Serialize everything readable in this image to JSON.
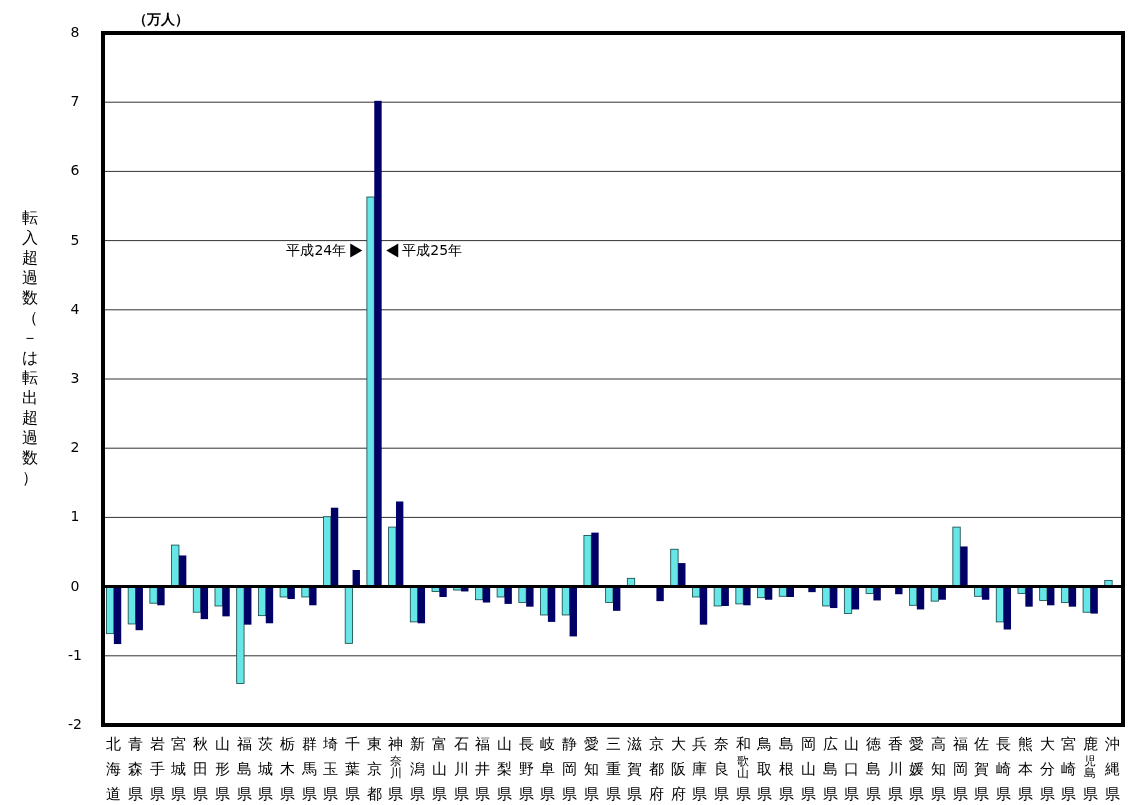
{
  "chart_data": {
    "type": "bar",
    "ylabel": "転入超過数（－は転出超過数）",
    "annotations": [
      "（万人）"
    ],
    "categories": [
      "北海道",
      "青森県",
      "岩手県",
      "宮城県",
      "秋田県",
      "山形県",
      "福島県",
      "茨城県",
      "栃木県",
      "群馬県",
      "埼玉県",
      "千葉県",
      "東京都",
      "神奈川県",
      "新潟県",
      "富山県",
      "石川県",
      "福井県",
      "山梨県",
      "長野県",
      "岐阜県",
      "静岡県",
      "愛知県",
      "三重県",
      "滋賀県",
      "京都府",
      "大阪府",
      "兵庫県",
      "奈良県",
      "和歌山県",
      "鳥取県",
      "島根県",
      "岡山県",
      "広島県",
      "山口県",
      "徳島県",
      "香川県",
      "愛媛県",
      "高知県",
      "福岡県",
      "佐賀県",
      "長崎県",
      "熊本県",
      "大分県",
      "宮崎県",
      "鹿児島県",
      "沖縄県"
    ],
    "series": [
      {
        "name": "平成24年",
        "color": "#66e6e6",
        "values": [
          -0.68,
          -0.54,
          -0.24,
          0.6,
          -0.37,
          -0.28,
          -1.4,
          -0.42,
          -0.15,
          -0.15,
          1.01,
          -0.82,
          5.63,
          0.86,
          -0.51,
          -0.07,
          -0.05,
          -0.19,
          -0.15,
          -0.23,
          -0.41,
          -0.41,
          0.74,
          -0.23,
          0.12,
          null,
          0.54,
          -0.15,
          -0.28,
          -0.25,
          -0.16,
          -0.14,
          null,
          -0.28,
          -0.39,
          -0.1,
          null,
          -0.27,
          -0.21,
          0.86,
          -0.14,
          -0.51,
          -0.1,
          -0.2,
          -0.23,
          -0.37,
          0.09
        ]
      },
      {
        "name": "平成25年",
        "color": "#000066",
        "values": [
          -0.83,
          -0.63,
          -0.27,
          0.45,
          -0.47,
          -0.43,
          -0.55,
          -0.53,
          -0.18,
          -0.27,
          1.14,
          0.24,
          7.02,
          1.23,
          -0.53,
          -0.15,
          -0.07,
          -0.23,
          -0.25,
          -0.29,
          -0.51,
          -0.72,
          0.78,
          -0.35,
          0,
          -0.21,
          0.34,
          -0.55,
          -0.28,
          -0.27,
          -0.19,
          -0.15,
          -0.08,
          -0.31,
          -0.33,
          -0.2,
          -0.11,
          -0.33,
          -0.19,
          0.58,
          -0.19,
          -0.62,
          -0.29,
          -0.27,
          -0.29,
          -0.39,
          0
        ]
      }
    ],
    "ylim": [
      -2,
      8
    ],
    "yticks": [
      -2,
      -1,
      0,
      1,
      2,
      3,
      4,
      5,
      6,
      7,
      8
    ],
    "grid": "y",
    "legend": "top"
  }
}
